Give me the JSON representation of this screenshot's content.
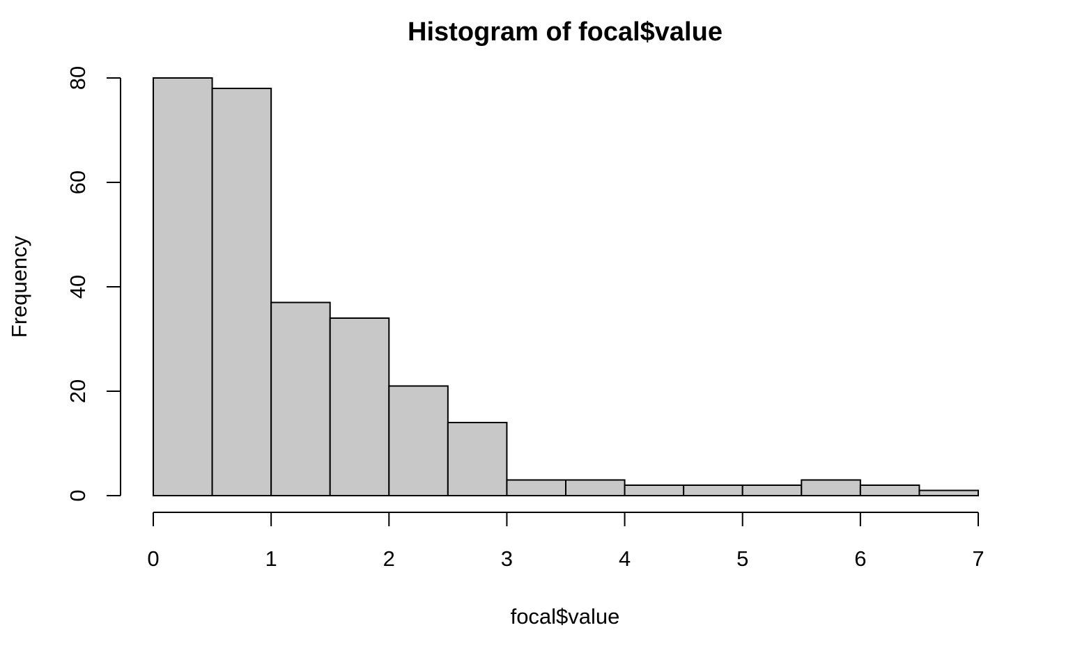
{
  "chart_data": {
    "type": "bar",
    "title": "Histogram of focal$value",
    "xlabel": "focal$value",
    "ylabel": "Frequency",
    "bin_edges": [
      0,
      0.5,
      1,
      1.5,
      2,
      2.5,
      3,
      3.5,
      4,
      4.5,
      5,
      5.5,
      6,
      6.5,
      7
    ],
    "values": [
      80,
      78,
      37,
      34,
      21,
      14,
      3,
      3,
      2,
      2,
      2,
      3,
      2,
      1
    ],
    "xlim": [
      0,
      7
    ],
    "ylim": [
      0,
      80
    ],
    "x_ticks": [
      0,
      1,
      2,
      3,
      4,
      5,
      6,
      7
    ],
    "x_tick_labels": [
      "0",
      "1",
      "2",
      "3",
      "4",
      "5",
      "6",
      "7"
    ],
    "y_ticks": [
      0,
      20,
      40,
      60,
      80
    ],
    "y_tick_labels": [
      "0",
      "20",
      "40",
      "60",
      "80"
    ],
    "bar_color": "#c8c8c8",
    "edge_color": "#000000",
    "grid": false,
    "legend": "none"
  }
}
